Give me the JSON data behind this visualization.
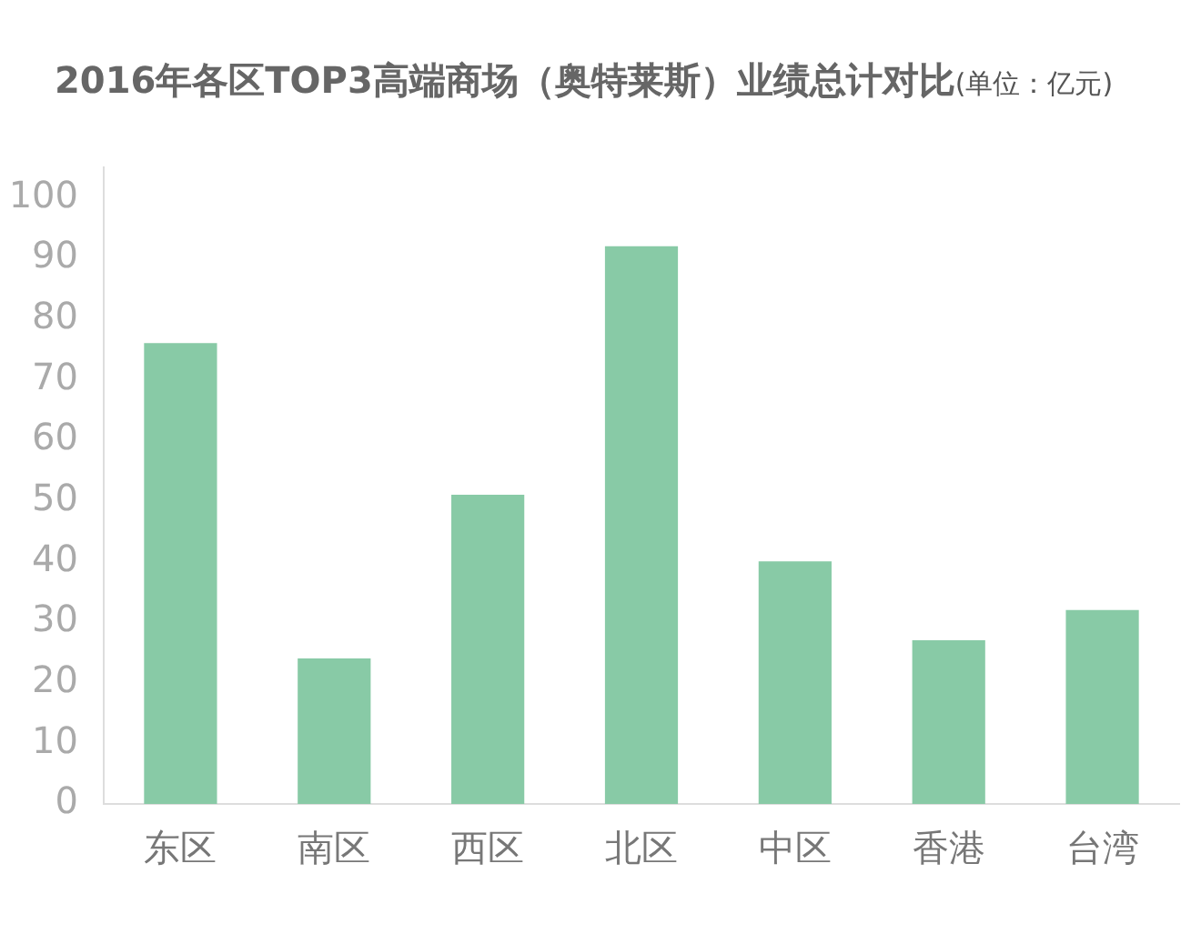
{
  "chart_data": {
    "type": "bar",
    "title": "2016年各区TOP3高端商场（奥特莱斯）业绩总计对比",
    "subtitle": "(单位：亿元)",
    "categories": [
      "东区",
      "南区",
      "西区",
      "北区",
      "中区",
      "香港",
      "台湾"
    ],
    "values": [
      76,
      24,
      51,
      92,
      40,
      27,
      32
    ],
    "color": "#88caa6",
    "ylim": [
      0,
      105
    ],
    "yticks": [
      0,
      10,
      20,
      30,
      40,
      50,
      60,
      70,
      80,
      90,
      100
    ]
  }
}
